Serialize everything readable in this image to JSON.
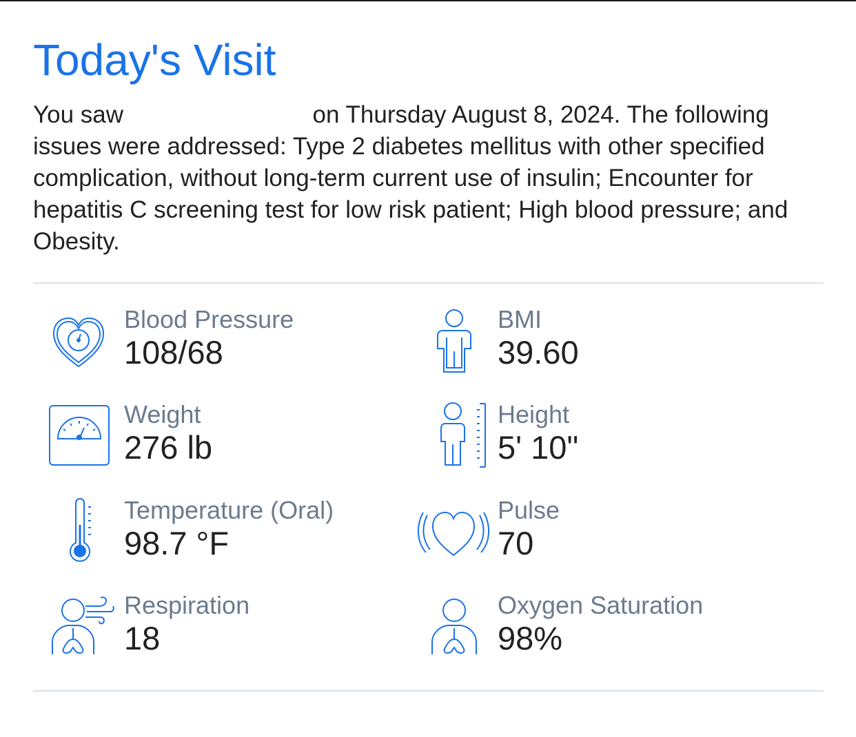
{
  "visit": {
    "title": "Today's Visit",
    "summary_prefix": "You saw",
    "summary_rest": "on Thursday August 8, 2024. The following issues were addressed: Type 2 diabetes mellitus with other specified complication, without long-term current use of insulin; Encounter for hepatitis C screening test for low risk patient; High blood pressure; and Obesity."
  },
  "vitals": [
    {
      "label": "Blood Pressure",
      "value": "108/68",
      "icon": "blood-pressure-heart-icon"
    },
    {
      "label": "BMI",
      "value": "39.60",
      "icon": "bmi-person-icon"
    },
    {
      "label": "Weight",
      "value": "276 lb",
      "icon": "weight-scale-icon"
    },
    {
      "label": "Height",
      "value": "5' 10\"",
      "icon": "height-person-icon"
    },
    {
      "label": "Temperature (Oral)",
      "value": "98.7 °F",
      "icon": "thermometer-icon"
    },
    {
      "label": "Pulse",
      "value": "70",
      "icon": "pulse-heart-icon"
    },
    {
      "label": "Respiration",
      "value": "18",
      "icon": "respiration-lungs-icon"
    },
    {
      "label": "Oxygen Saturation",
      "value": "98%",
      "icon": "oxygen-lungs-icon"
    }
  ],
  "colors": {
    "title": "#1a73e8",
    "icon_stroke": "#1a73e8",
    "label": "#6b7b8e",
    "value": "#222222",
    "divider": "#d9e1ea"
  }
}
